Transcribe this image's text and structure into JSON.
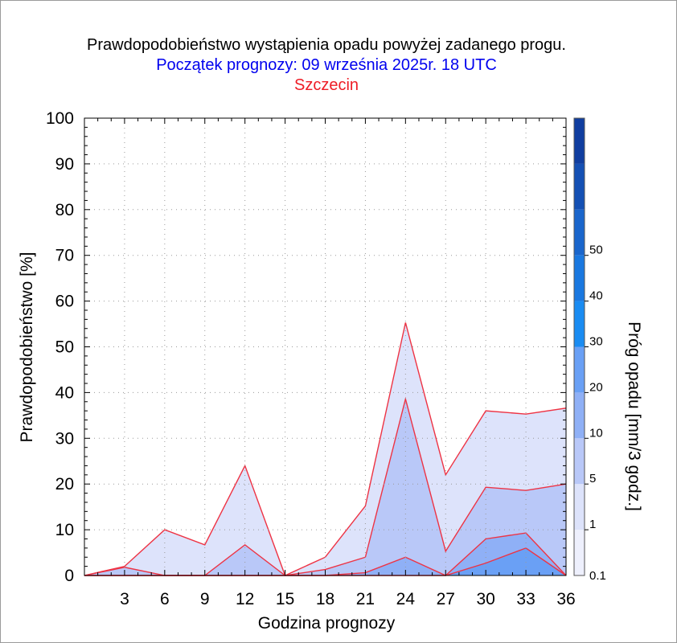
{
  "chart_data": {
    "type": "area",
    "title": "Prawdopodobieństwo wystąpienia opadu powyżej zadanego progu.",
    "subtitle": "Początek prognozy: 09 września 2025r. 18 UTC",
    "location": "Szczecin",
    "xlabel": "Godzina prognozy",
    "ylabel": "Prawdopodobieństwo [%]",
    "colorbar_label": "Próg opadu [mm/3 godz.]",
    "xlim": [
      0,
      36
    ],
    "ylim": [
      0,
      100
    ],
    "x_ticks": [
      3,
      6,
      9,
      12,
      15,
      18,
      21,
      24,
      27,
      30,
      33,
      36
    ],
    "y_ticks": [
      0,
      10,
      20,
      30,
      40,
      50,
      60,
      70,
      80,
      90,
      100
    ],
    "x": [
      0,
      3,
      6,
      9,
      12,
      15,
      18,
      21,
      24,
      27,
      30,
      33,
      36
    ],
    "series": [
      {
        "threshold": "0.1",
        "color": "#dde3fb",
        "values": [
          0,
          2,
          10,
          6.7,
          24,
          0,
          4,
          15.2,
          55.3,
          22,
          36,
          35.3,
          36.6
        ]
      },
      {
        "threshold": "1",
        "color": "#b9c8f8",
        "values": [
          0,
          1.8,
          0,
          0,
          6.7,
          0,
          1.3,
          4,
          38.6,
          5.3,
          19.3,
          18.6,
          20
        ]
      },
      {
        "threshold": "5",
        "color": "#8fb0f6",
        "values": [
          0,
          0,
          0,
          0,
          0,
          0,
          0,
          0.6,
          4,
          0,
          8,
          9.3,
          0
        ]
      },
      {
        "threshold": "10",
        "color": "#6aa0f5",
        "values": [
          0,
          0,
          0,
          0,
          0,
          0,
          0,
          0,
          0,
          0,
          2.7,
          6,
          0
        ]
      }
    ],
    "outline_color": "#ee3344",
    "colorbar": {
      "labels": [
        "0.1",
        "1",
        "5",
        "10",
        "20",
        "30",
        "40",
        "50"
      ],
      "colors": [
        "#eef0fd",
        "#dde3fb",
        "#b9c8f8",
        "#8fb0f6",
        "#6aa0f5",
        "#1a8cf2",
        "#1a78e0",
        "#1a66cc",
        "#1450b4",
        "#103ea0"
      ]
    },
    "grid": true
  }
}
